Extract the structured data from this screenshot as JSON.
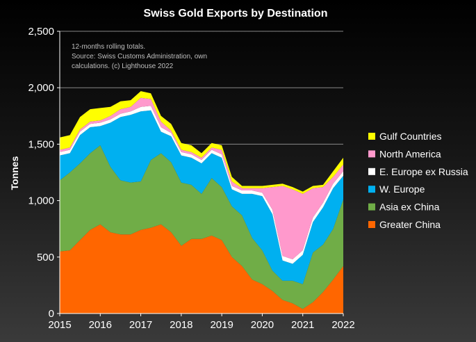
{
  "chart_data": {
    "type": "area",
    "stacked": true,
    "title": "Swiss Gold Exports by Destination",
    "xlabel": "",
    "ylabel": "Tonnes",
    "xlim": [
      2015,
      2022
    ],
    "ylim": [
      0,
      2500
    ],
    "x_ticks": [
      2015,
      2016,
      2017,
      2018,
      2019,
      2020,
      2021,
      2022
    ],
    "y_ticks": [
      0,
      500,
      1000,
      1500,
      2000,
      2500
    ],
    "y_tick_labels": [
      "0",
      "500",
      "1,000",
      "1,500",
      "2,000",
      "2,500"
    ],
    "grid": true,
    "legend_position": "right",
    "annotation": [
      "12-months rolling totals.",
      "Source: Swiss Customs Administration, own",
      "calculations. (c) Lighthouse 2022"
    ],
    "x": [
      2015.0,
      2015.25,
      2015.5,
      2015.75,
      2016.0,
      2016.25,
      2016.5,
      2016.75,
      2017.0,
      2017.25,
      2017.5,
      2017.75,
      2018.0,
      2018.25,
      2018.5,
      2018.75,
      2019.0,
      2019.25,
      2019.5,
      2019.75,
      2020.0,
      2020.25,
      2020.5,
      2020.75,
      2021.0,
      2021.25,
      2021.5,
      2021.75,
      2022.0
    ],
    "series": [
      {
        "name": "Greater China",
        "color": "#ff6600",
        "values": [
          550,
          560,
          650,
          740,
          790,
          720,
          700,
          700,
          740,
          760,
          790,
          720,
          600,
          660,
          660,
          690,
          650,
          500,
          420,
          300,
          260,
          200,
          120,
          90,
          40,
          100,
          190,
          300,
          420
        ]
      },
      {
        "name": "Asia ex China",
        "color": "#70ad47",
        "values": [
          630,
          690,
          680,
          680,
          700,
          580,
          480,
          460,
          430,
          600,
          630,
          620,
          560,
          480,
          400,
          510,
          470,
          450,
          450,
          370,
          300,
          180,
          170,
          200,
          220,
          440,
          420,
          450,
          590
        ]
      },
      {
        "name": "W. Europe",
        "color": "#00b0f0",
        "values": [
          220,
          170,
          250,
          230,
          170,
          390,
          560,
          600,
          620,
          440,
          190,
          230,
          240,
          240,
          270,
          220,
          260,
          150,
          190,
          390,
          480,
          500,
          180,
          150,
          260,
          270,
          330,
          360,
          210
        ]
      },
      {
        "name": "E. Europe ex Russia",
        "color": "#ffffff",
        "values": [
          30,
          30,
          30,
          30,
          30,
          30,
          30,
          30,
          40,
          40,
          40,
          30,
          30,
          30,
          30,
          30,
          30,
          30,
          30,
          30,
          30,
          40,
          40,
          40,
          40,
          40,
          40,
          40,
          40
        ]
      },
      {
        "name": "North America",
        "color": "#ff99cc",
        "values": [
          20,
          20,
          20,
          20,
          20,
          30,
          40,
          40,
          80,
          60,
          50,
          20,
          20,
          20,
          20,
          20,
          40,
          40,
          20,
          20,
          40,
          200,
          620,
          620,
          500,
          260,
          140,
          60,
          60
        ]
      },
      {
        "name": "Gulf Countries",
        "color": "#ffff00",
        "values": [
          110,
          110,
          110,
          110,
          110,
          80,
          70,
          60,
          60,
          50,
          50,
          60,
          60,
          60,
          40,
          40,
          40,
          40,
          20,
          20,
          20,
          20,
          20,
          20,
          20,
          20,
          20,
          50,
          60
        ]
      }
    ]
  }
}
